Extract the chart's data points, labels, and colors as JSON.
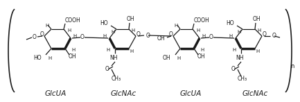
{
  "background_color": "#ffffff",
  "labels": {
    "unit1": "GlcUA",
    "unit2": "GlcNAc",
    "unit3": "GlcUA",
    "unit4": "GlcNAc",
    "repeat": "n"
  },
  "line_color": "#1a1a1a",
  "line_width": 0.9,
  "fig_width": 4.33,
  "fig_height": 1.47,
  "dpi": 100
}
